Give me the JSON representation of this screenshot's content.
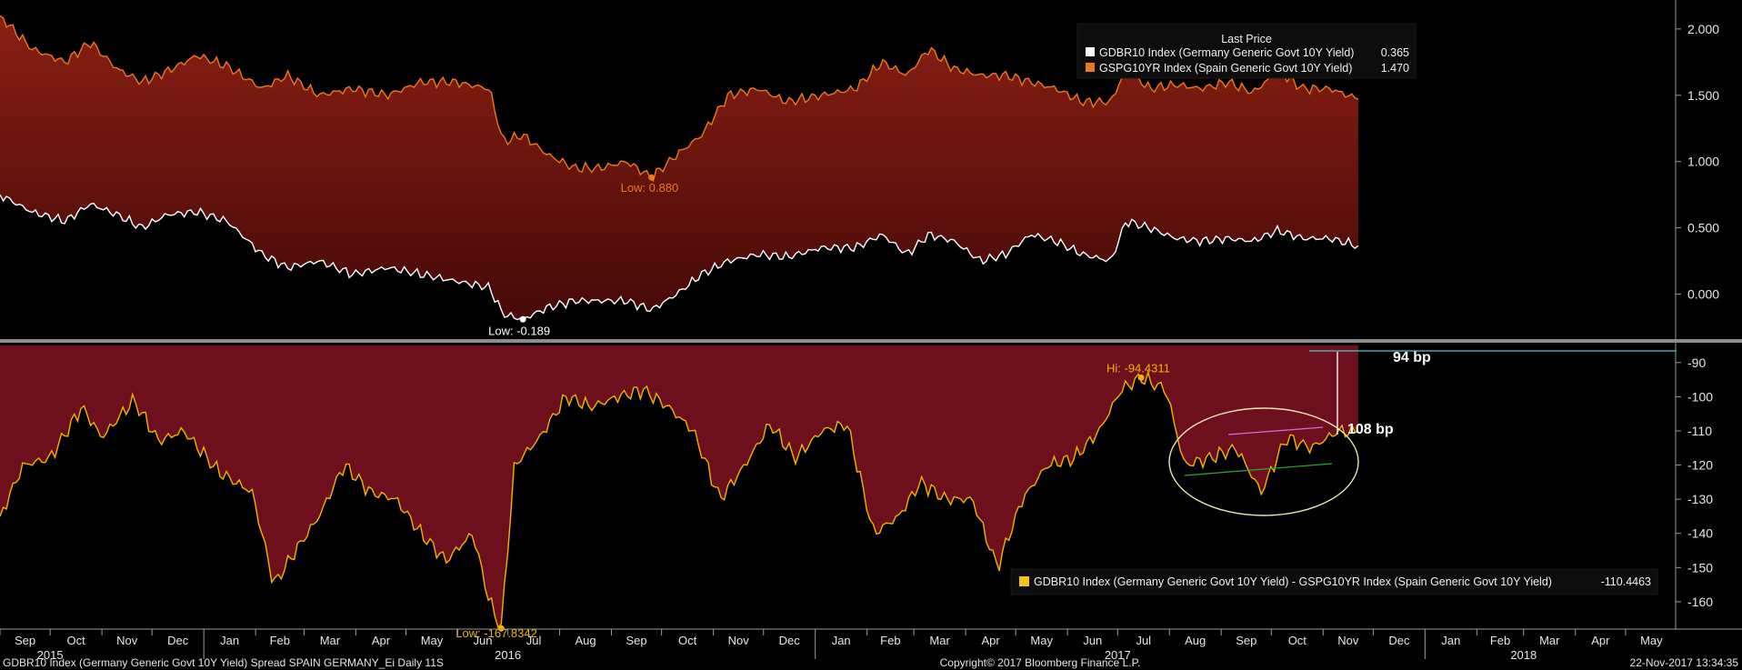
{
  "colors": {
    "background": "#000000",
    "area_top": "#7c1a12",
    "area_bottom": "#4a0b08",
    "spread_fill": "#6e0f1e",
    "spain_line": "#e87a1e",
    "germany_line": "#ffffff",
    "spread_line": "#f0b400",
    "axis_text": "#e6e6e6",
    "accent_line": "#3fd1c8"
  },
  "top_legend": {
    "title": "Last Price",
    "items": [
      {
        "label": "GDBR10 Index (Germany Generic Govt 10Y Yield)",
        "value": "0.365",
        "color": "#ffffff"
      },
      {
        "label": "GSPG10YR Index (Spain Generic Govt 10Y Yield)",
        "value": "1.470",
        "color": "#e87a1e"
      }
    ]
  },
  "bottom_legend": {
    "label": "GDBR10 Index (Germany Generic Govt 10Y Yield) - GSPG10YR Index (Spain Generic Govt 10Y Yield)",
    "value": "-110.4463",
    "color": "#f0c419"
  },
  "annotations": {
    "top_low_spain": "Low: 0.880",
    "top_low_germany": "Low: -0.189",
    "bottom_hi": "Hi: -94.4311",
    "bottom_low": "Low: -167.8342",
    "bp_94": "94 bp",
    "bp_108": "108 bp"
  },
  "footer": {
    "left": "GDBR10 Index (Germany Generic Govt 10Y Yield) Spread SPAIN GERMANY_Ei  Daily 11S",
    "center": "Copyright© 2017 Bloomberg Finance L.P.",
    "right": "22-Nov-2017 13:34:35"
  },
  "chart_data": [
    {
      "type": "area",
      "title": "",
      "y_ticks": [
        "2.000",
        "1.500",
        "1.000",
        "0.500",
        "0.000"
      ],
      "ylim": [
        -0.25,
        2.15
      ],
      "x_range": [
        "2015-09-01",
        "2018-05-31"
      ],
      "series": [
        {
          "name": "GSPG10YR Index (Spain Generic Govt 10Y Yield)",
          "x": [
            "2015-09-01",
            "2015-09-20",
            "2015-10-10",
            "2015-10-25",
            "2015-11-10",
            "2015-11-25",
            "2015-12-10",
            "2015-12-28",
            "2016-01-15",
            "2016-02-05",
            "2016-02-20",
            "2016-03-10",
            "2016-03-30",
            "2016-04-20",
            "2016-05-10",
            "2016-05-30",
            "2016-06-20",
            "2016-06-28",
            "2016-07-10",
            "2016-07-25",
            "2016-08-10",
            "2016-08-25",
            "2016-09-10",
            "2016-09-25",
            "2016-10-10",
            "2016-10-25",
            "2016-11-10",
            "2016-11-28",
            "2016-12-15",
            "2017-01-05",
            "2017-01-25",
            "2017-02-10",
            "2017-02-25",
            "2017-03-10",
            "2017-03-25",
            "2017-04-10",
            "2017-04-25",
            "2017-05-10",
            "2017-05-25",
            "2017-06-10",
            "2017-06-27",
            "2017-07-06",
            "2017-07-20",
            "2017-08-05",
            "2017-08-20",
            "2017-09-05",
            "2017-09-20",
            "2017-10-05",
            "2017-10-20",
            "2017-11-05",
            "2017-11-22"
          ],
          "y": [
            2.1,
            1.85,
            1.75,
            1.9,
            1.7,
            1.6,
            1.68,
            1.8,
            1.72,
            1.55,
            1.65,
            1.5,
            1.55,
            1.5,
            1.6,
            1.6,
            1.55,
            1.15,
            1.2,
            1.05,
            0.95,
            0.95,
            1.0,
            0.88,
            1.05,
            1.2,
            1.5,
            1.55,
            1.45,
            1.5,
            1.55,
            1.75,
            1.65,
            1.85,
            1.7,
            1.65,
            1.65,
            1.6,
            1.55,
            1.45,
            1.45,
            1.7,
            1.55,
            1.58,
            1.55,
            1.6,
            1.52,
            1.68,
            1.55,
            1.55,
            1.47
          ]
        },
        {
          "name": "GDBR10 Index (Germany Generic Govt 10Y Yield)",
          "x": [
            "2015-09-01",
            "2015-09-20",
            "2015-10-10",
            "2015-10-25",
            "2015-11-10",
            "2015-11-25",
            "2015-12-10",
            "2015-12-28",
            "2016-01-15",
            "2016-02-05",
            "2016-02-20",
            "2016-03-10",
            "2016-03-30",
            "2016-04-20",
            "2016-05-10",
            "2016-05-30",
            "2016-06-20",
            "2016-06-28",
            "2016-07-10",
            "2016-07-25",
            "2016-08-10",
            "2016-08-25",
            "2016-09-10",
            "2016-09-25",
            "2016-10-10",
            "2016-10-25",
            "2016-11-10",
            "2016-11-28",
            "2016-12-15",
            "2017-01-05",
            "2017-01-25",
            "2017-02-10",
            "2017-02-25",
            "2017-03-10",
            "2017-03-25",
            "2017-04-10",
            "2017-04-25",
            "2017-05-10",
            "2017-05-25",
            "2017-06-10",
            "2017-06-27",
            "2017-07-06",
            "2017-07-20",
            "2017-08-05",
            "2017-08-20",
            "2017-09-05",
            "2017-09-20",
            "2017-10-05",
            "2017-10-20",
            "2017-11-05",
            "2017-11-22"
          ],
          "y": [
            0.75,
            0.62,
            0.55,
            0.68,
            0.6,
            0.5,
            0.6,
            0.62,
            0.55,
            0.3,
            0.2,
            0.25,
            0.15,
            0.2,
            0.15,
            0.1,
            0.05,
            -0.15,
            -0.19,
            -0.1,
            -0.05,
            -0.05,
            -0.05,
            -0.12,
            0.0,
            0.15,
            0.25,
            0.3,
            0.28,
            0.35,
            0.35,
            0.45,
            0.3,
            0.45,
            0.4,
            0.25,
            0.3,
            0.45,
            0.4,
            0.3,
            0.25,
            0.55,
            0.5,
            0.42,
            0.4,
            0.42,
            0.4,
            0.48,
            0.42,
            0.42,
            0.365
          ]
        }
      ]
    },
    {
      "type": "area",
      "title": "",
      "y_ticks": [
        "-90",
        "-100",
        "-110",
        "-120",
        "-130",
        "-140",
        "-150",
        "-160"
      ],
      "ylim": [
        -168,
        -85
      ],
      "x_range": [
        "2015-09-01",
        "2018-05-31"
      ],
      "series": [
        {
          "name": "GDBR10 Index (Germany Generic Govt 10Y Yield) - GSPG10YR Index (Spain Generic Govt 10Y Yield)",
          "x": [
            "2015-09-01",
            "2015-09-15",
            "2015-10-01",
            "2015-10-20",
            "2015-11-01",
            "2015-11-20",
            "2015-12-05",
            "2015-12-20",
            "2016-01-10",
            "2016-01-30",
            "2016-02-12",
            "2016-02-25",
            "2016-03-10",
            "2016-03-25",
            "2016-04-10",
            "2016-04-25",
            "2016-05-10",
            "2016-05-25",
            "2016-06-10",
            "2016-06-20",
            "2016-06-27",
            "2016-07-05",
            "2016-07-20",
            "2016-08-05",
            "2016-08-20",
            "2016-09-05",
            "2016-09-20",
            "2016-10-05",
            "2016-10-20",
            "2016-11-05",
            "2016-11-20",
            "2016-12-05",
            "2016-12-20",
            "2017-01-05",
            "2017-01-20",
            "2017-02-05",
            "2017-02-20",
            "2017-03-05",
            "2017-03-20",
            "2017-04-05",
            "2017-04-20",
            "2017-05-05",
            "2017-05-20",
            "2017-06-05",
            "2017-06-20",
            "2017-07-03",
            "2017-07-15",
            "2017-07-30",
            "2017-08-10",
            "2017-08-25",
            "2017-09-10",
            "2017-09-25",
            "2017-10-10",
            "2017-10-25",
            "2017-11-10",
            "2017-11-22"
          ],
          "y": [
            -135,
            -120,
            -118,
            -103,
            -112,
            -101,
            -113,
            -110,
            -122,
            -128,
            -155,
            -145,
            -135,
            -120,
            -128,
            -130,
            -140,
            -148,
            -140,
            -160,
            -167.8,
            -120,
            -112,
            -100,
            -103,
            -100,
            -98,
            -103,
            -110,
            -130,
            -120,
            -108,
            -118,
            -110,
            -108,
            -140,
            -135,
            -125,
            -130,
            -130,
            -150,
            -130,
            -120,
            -118,
            -110,
            -98,
            -94.4,
            -98,
            -120,
            -118,
            -115,
            -128,
            -112,
            -115,
            -110,
            -110.4
          ]
        }
      ]
    }
  ],
  "x_axis": {
    "months": [
      "Sep",
      "Oct",
      "Nov",
      "Dec",
      "Jan",
      "Feb",
      "Mar",
      "Apr",
      "May",
      "Jun",
      "Jul",
      "Aug",
      "Sep",
      "Oct",
      "Nov",
      "Dec",
      "Jan",
      "Feb",
      "Mar",
      "Apr",
      "May",
      "Jun",
      "Jul",
      "Aug",
      "Sep",
      "Oct",
      "Nov",
      "Dec",
      "Jan",
      "Feb",
      "Mar",
      "Apr",
      "May"
    ],
    "years": [
      "2015",
      "2016",
      "2017",
      "2018"
    ]
  }
}
